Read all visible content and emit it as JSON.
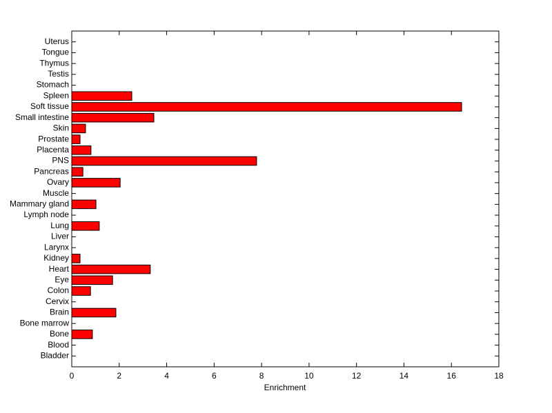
{
  "chart_data": {
    "type": "barh",
    "xlabel": "Enrichment",
    "categories": [
      "Bladder",
      "Blood",
      "Bone",
      "Bone marrow",
      "Brain",
      "Cervix",
      "Colon",
      "Eye",
      "Heart",
      "Kidney",
      "Larynx",
      "Liver",
      "Lung",
      "Lymph node",
      "Mammary gland",
      "Muscle",
      "Ovary",
      "Pancreas",
      "PNS",
      "Placenta",
      "Prostate",
      "Skin",
      "Small intestine",
      "Soft tissue",
      "Spleen",
      "Stomach",
      "Testis",
      "Thymus",
      "Tongue",
      "Uterus"
    ],
    "values": [
      0,
      0,
      0.87,
      0,
      1.86,
      0,
      0.79,
      1.72,
      3.31,
      0.35,
      0,
      0,
      1.16,
      0,
      1.02,
      0,
      2.04,
      0.47,
      7.79,
      0.81,
      0.35,
      0.58,
      3.46,
      16.43,
      2.53,
      0,
      0,
      0,
      0,
      0
    ],
    "color": "#ff0000",
    "xlim": [
      0,
      18
    ],
    "xticks": [
      0,
      2,
      4,
      6,
      8,
      10,
      12,
      14,
      16,
      18
    ]
  }
}
